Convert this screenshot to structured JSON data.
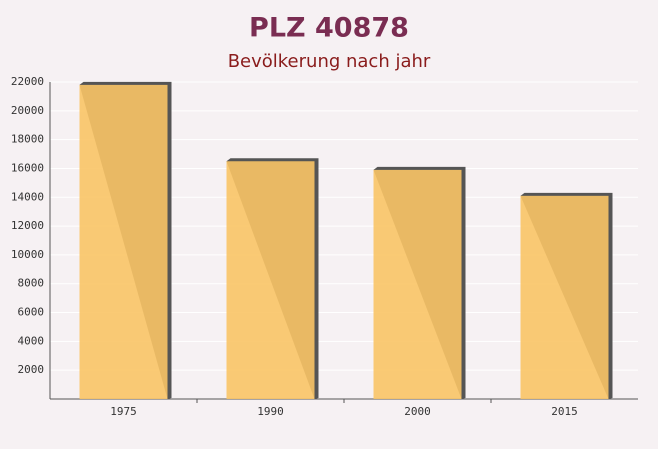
{
  "chart_data": {
    "type": "bar",
    "title": "PLZ 40878",
    "subtitle": "Bevölkerung nach jahr",
    "categories": [
      "1975",
      "1990",
      "2000",
      "2015"
    ],
    "values": [
      21800,
      16500,
      15900,
      14100
    ],
    "color": "#f9c466",
    "ylim": [
      0,
      22000
    ],
    "yticks": [
      2000,
      4000,
      6000,
      8000,
      10000,
      12000,
      14000,
      16000,
      18000,
      20000,
      22000
    ],
    "grid": true
  }
}
